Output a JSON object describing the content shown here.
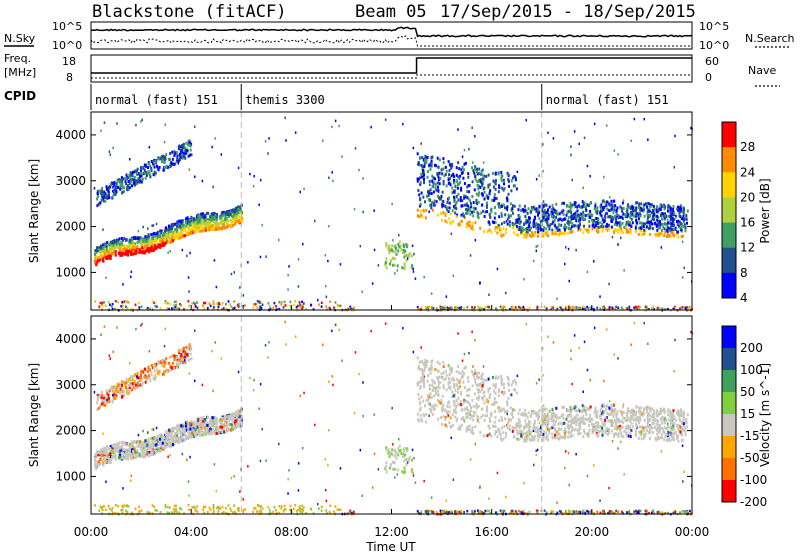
{
  "header": {
    "station": "Blackstone (fitACF)",
    "beam": "Beam 05",
    "date_range": "17/Sep/2015 - 18/Sep/2015"
  },
  "panels": {
    "nsky_label": "N.Sky",
    "nsearch_label": "N.Search",
    "freq_label_top": "Freq.",
    "freq_label_bottom": "[MHz]",
    "nave_label": "Nave",
    "cpid_label": "CPID",
    "log_top_tick": "10^5",
    "log_bottom_tick": "10^0",
    "freq_ticks": [
      "18",
      "8"
    ],
    "nave_ticks": [
      "60",
      "0"
    ]
  },
  "cpid": [
    {
      "label": "normal (fast) 151",
      "start_hour": 0,
      "end_hour": 6
    },
    {
      "label": "themis 3300",
      "start_hour": 6,
      "end_hour": 18
    },
    {
      "label": "normal (fast) 151",
      "start_hour": 18,
      "end_hour": 24
    }
  ],
  "chart_data": [
    {
      "type": "heatmap",
      "name": "power",
      "ylabel": "Slant Range [km]",
      "xlabel": "Time UT",
      "xlim": [
        0,
        24
      ],
      "ylim": [
        180,
        4500
      ],
      "x_ticks": [
        "00:00",
        "04:00",
        "08:00",
        "12:00",
        "16:00",
        "20:00",
        "00:00"
      ],
      "y_ticks": [
        1000,
        2000,
        3000,
        4000
      ],
      "colorbar": {
        "label": "Power [dB]",
        "ticks": [
          "28",
          "24",
          "20",
          "16",
          "12",
          "8",
          "4"
        ],
        "colors": [
          "#ff0000",
          "#ff8c00",
          "#ffd400",
          "#b0d040",
          "#40a060",
          "#205090",
          "#0000ff"
        ]
      },
      "features": [
        {
          "desc_hours": [
            0.1,
            6.0
          ],
          "range_km": [
            1100,
            2600
          ],
          "peak_db": 28
        },
        {
          "desc_hours": [
            13.0,
            23.5
          ],
          "range_km": [
            1800,
            3300
          ],
          "peak_db": 20
        }
      ]
    },
    {
      "type": "heatmap",
      "name": "velocity",
      "ylabel": "Slant Range [km]",
      "xlabel": "Time UT",
      "xlim": [
        0,
        24
      ],
      "ylim": [
        180,
        4500
      ],
      "x_ticks": [
        "00:00",
        "04:00",
        "08:00",
        "12:00",
        "16:00",
        "20:00",
        "00:00"
      ],
      "y_ticks": [
        1000,
        2000,
        3000,
        4000
      ],
      "colorbar": {
        "label": "Velocity [m s^-1]",
        "ticks": [
          "200",
          "100",
          "50",
          "15",
          "-15",
          "-50",
          "-100",
          "-200"
        ],
        "colors": [
          "#0000ff",
          "#205090",
          "#40a060",
          "#80d040",
          "#c8c8c0",
          "#ffa500",
          "#ff7000",
          "#ff0000"
        ]
      }
    }
  ],
  "colors": {
    "power_scale": [
      "#0000ff",
      "#205090",
      "#40a060",
      "#b0d040",
      "#ffd400",
      "#ff8c00",
      "#ff0000"
    ],
    "ground_scatter": "#c8c8c0"
  },
  "axis": {
    "time_label": "Time UT"
  }
}
